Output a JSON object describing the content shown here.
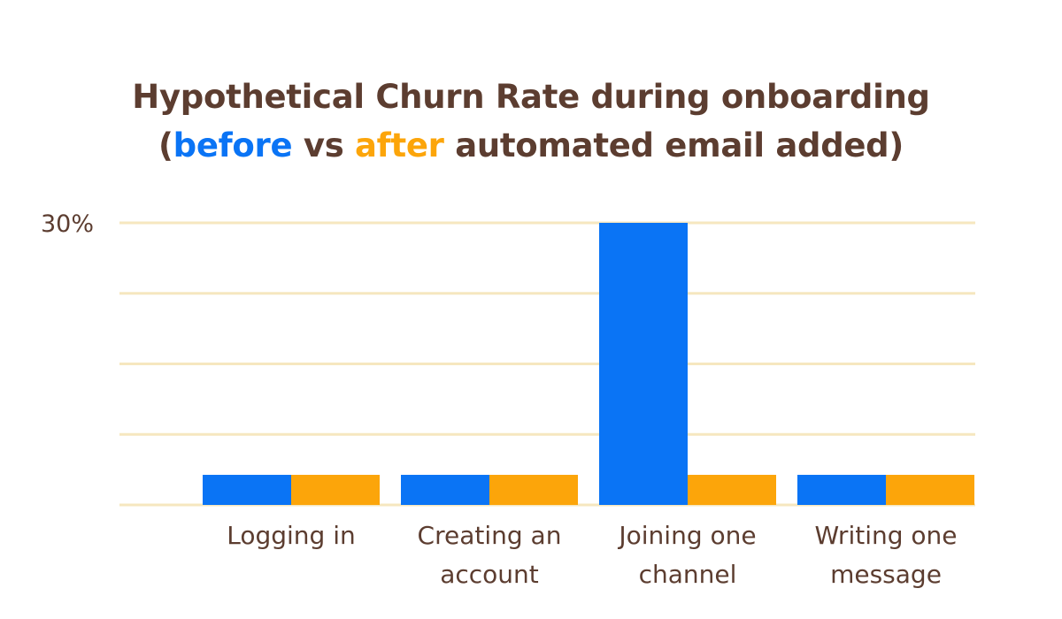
{
  "chart_data": {
    "type": "bar",
    "title": {
      "line1": "Hypothetical Churn Rate during onboarding",
      "line2_open": "(",
      "before_word": "before",
      "vs_word": " vs ",
      "after_word": "after",
      "line2_rest": " automated email added)"
    },
    "categories": [
      [
        "Logging in"
      ],
      [
        "Creating an",
        "account"
      ],
      [
        "Joining one",
        "channel"
      ],
      [
        "Writing one",
        "message"
      ]
    ],
    "series": [
      {
        "values": [
          3.2,
          3.2,
          30,
          3.2
        ],
        "color": "#0a74f5"
      },
      {
        "values": [
          3.2,
          3.2,
          3.2,
          3.2
        ],
        "color": "#fca50a"
      }
    ],
    "ylim": [
      0,
      30
    ],
    "y_ticks": [
      0,
      7.5,
      15,
      22.5,
      30
    ],
    "y_tick_labels": [
      "30%"
    ],
    "grid": true,
    "grid_color": "#f6e7bf",
    "legend": "none"
  }
}
